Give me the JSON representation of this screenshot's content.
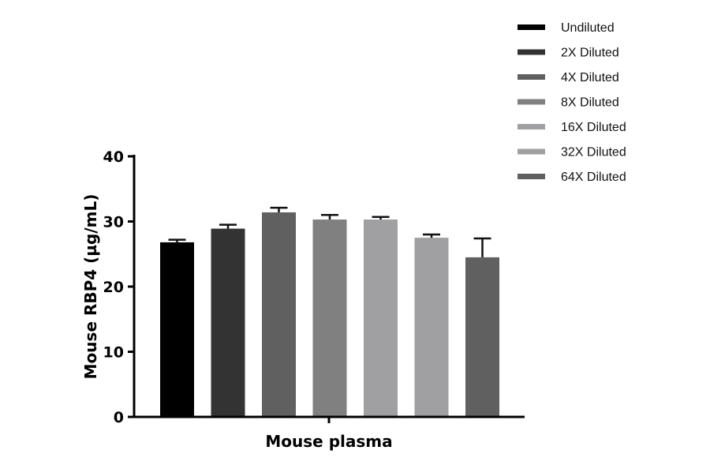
{
  "chart_data": {
    "type": "bar",
    "title": "",
    "xlabel": "Mouse plasma",
    "ylabel": "Mouse RBP4 (µg/mL)",
    "ylim": [
      0,
      40
    ],
    "yticks": [
      0,
      10,
      20,
      30,
      40
    ],
    "grid": false,
    "legend_placement": "top-right",
    "series": [
      {
        "name": "Undiluted",
        "value": 26.8,
        "error": 0.4,
        "color": "#000000"
      },
      {
        "name": "2X Diluted",
        "value": 28.9,
        "error": 0.6,
        "color": "#333333"
      },
      {
        "name": "4X Diluted",
        "value": 31.4,
        "error": 0.7,
        "color": "#606060"
      },
      {
        "name": "8X Diluted",
        "value": 30.3,
        "error": 0.7,
        "color": "#808080"
      },
      {
        "name": "16X Diluted",
        "value": 30.3,
        "error": 0.4,
        "color": "#a0a0a2"
      },
      {
        "name": "32X Diluted",
        "value": 27.5,
        "error": 0.5,
        "color": "#a0a0a2"
      },
      {
        "name": "64X Diluted",
        "value": 24.5,
        "error": 2.9,
        "color": "#606060"
      }
    ]
  }
}
